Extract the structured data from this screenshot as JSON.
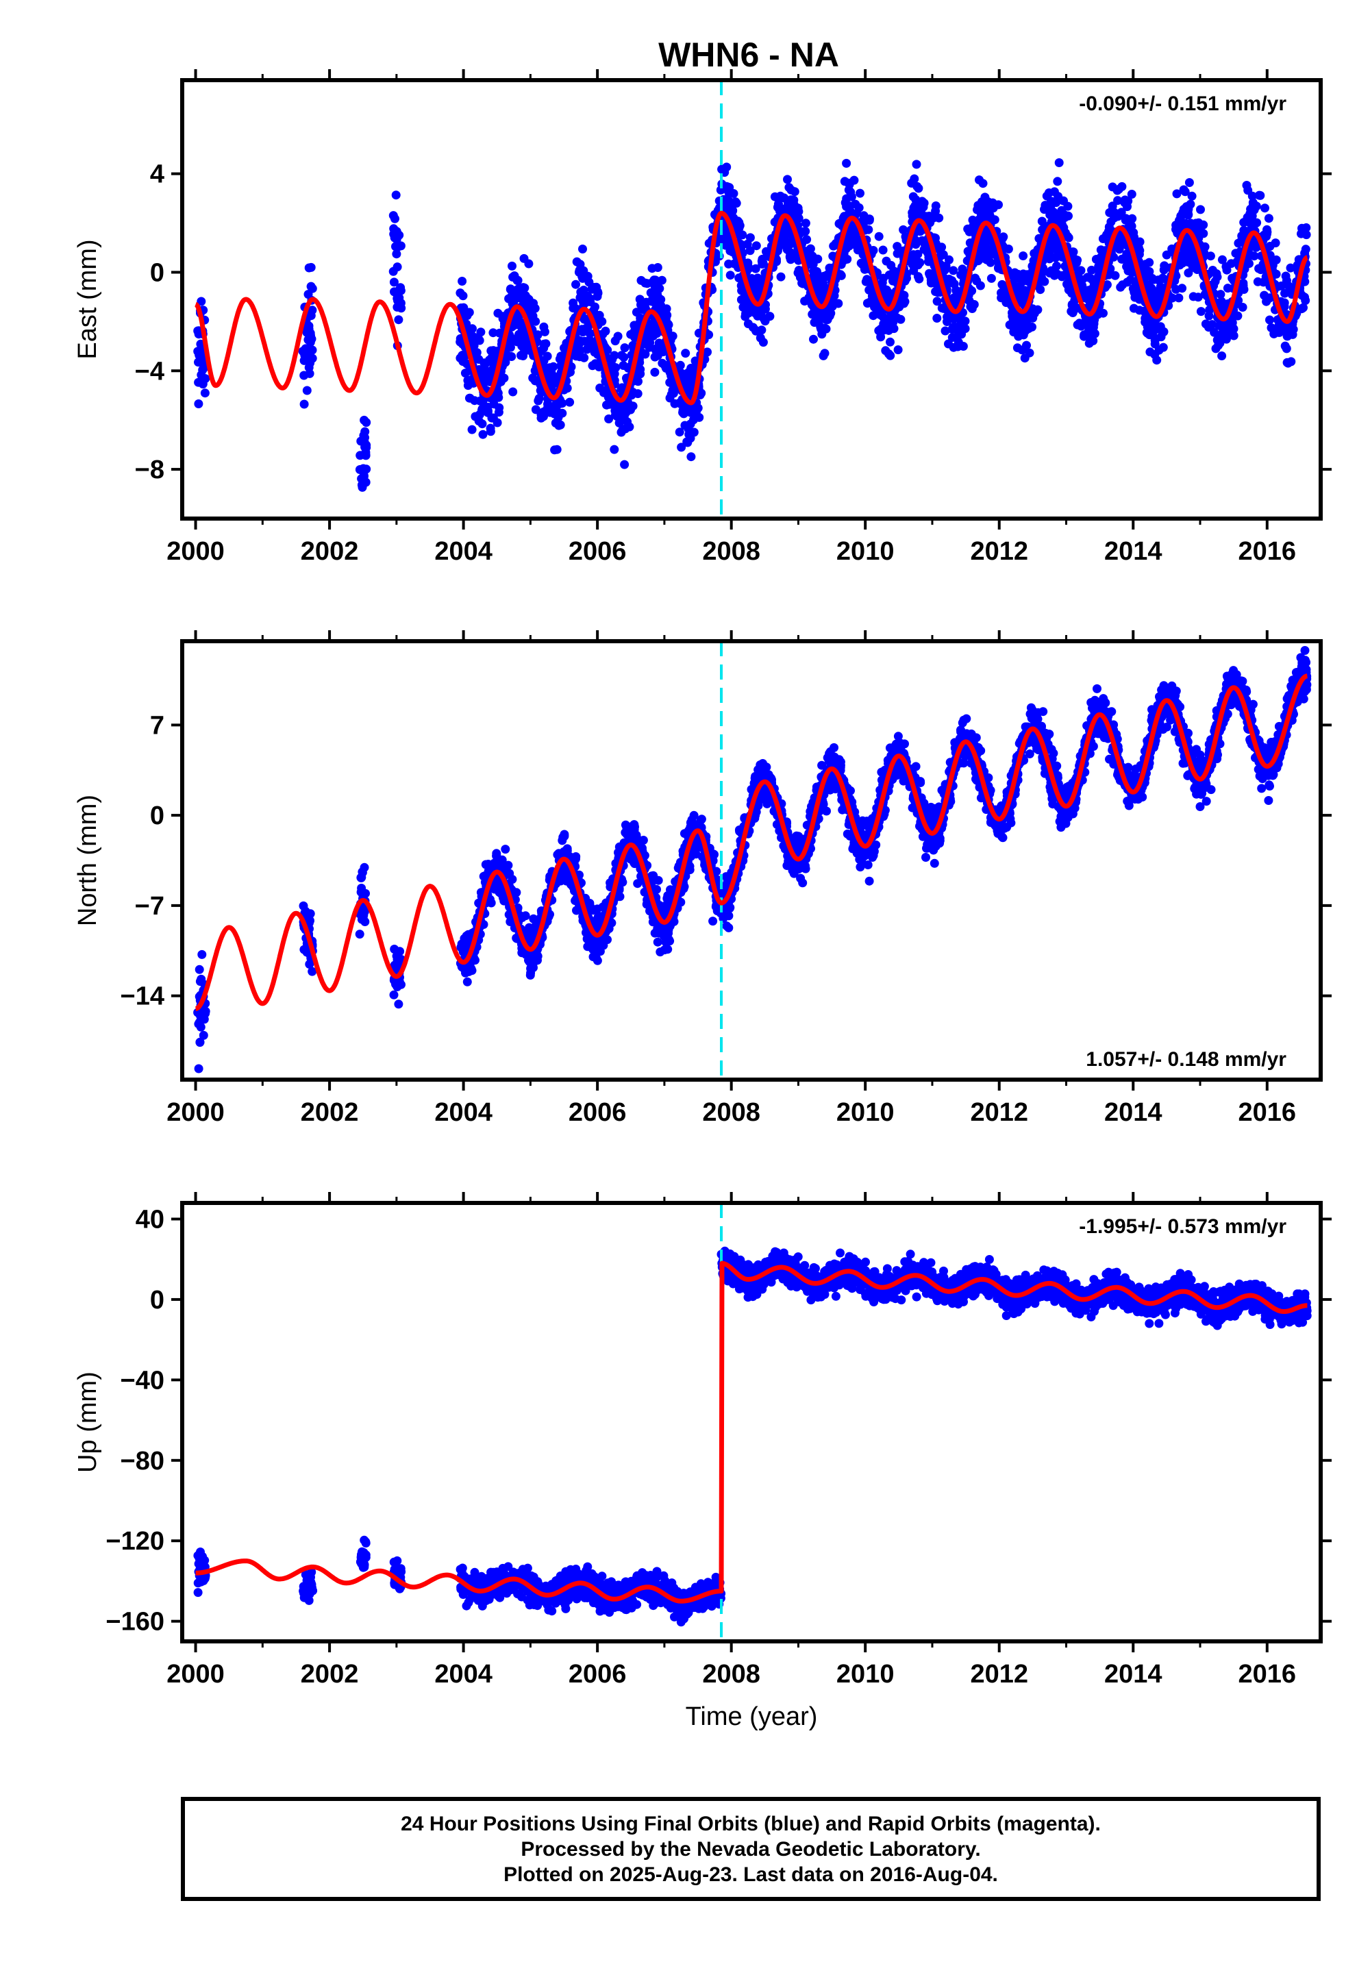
{
  "title": "WHN6 - NA",
  "colors": {
    "data": "#0000ff",
    "model": "#ff0000",
    "offset": "#00e5ee",
    "frame": "#000000"
  },
  "chart_data": [
    {
      "type": "scatter",
      "component": "East",
      "ylabel": "East (mm)",
      "xlim": [
        1999.8,
        2016.8
      ],
      "ylim": [
        -10,
        7.8
      ],
      "xticks": [
        2000,
        2002,
        2004,
        2006,
        2008,
        2010,
        2012,
        2014,
        2016
      ],
      "yticks": [
        4,
        0,
        -4,
        -8
      ],
      "rate_label": "-0.090+/- 0.151 mm/yr",
      "rate_position": "top-right",
      "offset_epoch": 2007.85,
      "model": {
        "description_points": [
          {
            "x": 2000.0,
            "y": -1.3
          },
          {
            "x": 2000.3,
            "y": -4.6
          },
          {
            "x": 2000.75,
            "y": -1.1
          },
          {
            "x": 2001.3,
            "y": -4.7
          },
          {
            "x": 2001.75,
            "y": -1.1
          },
          {
            "x": 2002.3,
            "y": -4.8
          },
          {
            "x": 2002.75,
            "y": -1.2
          },
          {
            "x": 2003.3,
            "y": -4.9
          },
          {
            "x": 2003.8,
            "y": -1.3
          },
          {
            "x": 2004.35,
            "y": -5.0
          },
          {
            "x": 2004.8,
            "y": -1.4
          },
          {
            "x": 2005.35,
            "y": -5.1
          },
          {
            "x": 2005.8,
            "y": -1.5
          },
          {
            "x": 2006.35,
            "y": -5.2
          },
          {
            "x": 2006.8,
            "y": -1.6
          },
          {
            "x": 2007.4,
            "y": -5.3
          },
          {
            "x": 2007.85,
            "y": 2.4
          },
          {
            "x": 2008.4,
            "y": -1.3
          },
          {
            "x": 2008.8,
            "y": 2.3
          },
          {
            "x": 2009.35,
            "y": -1.4
          },
          {
            "x": 2009.8,
            "y": 2.2
          },
          {
            "x": 2010.35,
            "y": -1.5
          },
          {
            "x": 2010.8,
            "y": 2.1
          },
          {
            "x": 2011.35,
            "y": -1.6
          },
          {
            "x": 2011.8,
            "y": 2.0
          },
          {
            "x": 2012.35,
            "y": -1.6
          },
          {
            "x": 2012.8,
            "y": 1.9
          },
          {
            "x": 2013.35,
            "y": -1.7
          },
          {
            "x": 2013.8,
            "y": 1.8
          },
          {
            "x": 2014.35,
            "y": -1.8
          },
          {
            "x": 2014.8,
            "y": 1.7
          },
          {
            "x": 2015.35,
            "y": -1.9
          },
          {
            "x": 2015.8,
            "y": 1.6
          },
          {
            "x": 2016.3,
            "y": -2.0
          },
          {
            "x": 2016.6,
            "y": 0.6
          }
        ]
      },
      "segments": [
        {
          "x": [
            2000.03,
            2000.15
          ],
          "center_base": -1.3,
          "spread": 1.8
        },
        {
          "x": [
            2001.6,
            2001.75
          ],
          "center_base": -1.2,
          "spread": 1.8
        },
        {
          "x": [
            2002.45,
            2002.55
          ],
          "center_base": -4.6,
          "spread": 1.2
        },
        {
          "x": [
            2002.95,
            2003.07
          ],
          "center_base": 3.0,
          "spread": 1.6
        },
        {
          "x": [
            2003.95,
            2007.85
          ],
          "center_base": 0,
          "spread": 1.3
        },
        {
          "x": [
            2007.85,
            2016.6
          ],
          "center_base": 0,
          "spread": 1.2
        }
      ]
    },
    {
      "type": "scatter",
      "component": "North",
      "ylabel": "North (mm)",
      "xlim": [
        1999.8,
        2016.8
      ],
      "ylim": [
        -20.5,
        13.5
      ],
      "xticks": [
        2000,
        2002,
        2004,
        2006,
        2008,
        2010,
        2012,
        2014,
        2016
      ],
      "yticks": [
        7,
        0,
        -7,
        -14
      ],
      "rate_label": "1.057+/- 0.148 mm/yr",
      "rate_position": "bottom-right",
      "offset_epoch": 2007.85,
      "model": {
        "description_points": [
          {
            "x": 2000.0,
            "y": -15.0
          },
          {
            "x": 2000.5,
            "y": -8.7
          },
          {
            "x": 2001.0,
            "y": -14.6
          },
          {
            "x": 2001.5,
            "y": -7.6
          },
          {
            "x": 2002.0,
            "y": -13.6
          },
          {
            "x": 2002.5,
            "y": -6.6
          },
          {
            "x": 2003.0,
            "y": -12.5
          },
          {
            "x": 2003.5,
            "y": -5.5
          },
          {
            "x": 2004.0,
            "y": -11.4
          },
          {
            "x": 2004.5,
            "y": -4.4
          },
          {
            "x": 2005.0,
            "y": -10.4
          },
          {
            "x": 2005.5,
            "y": -3.4
          },
          {
            "x": 2006.0,
            "y": -9.3
          },
          {
            "x": 2006.5,
            "y": -2.3
          },
          {
            "x": 2007.0,
            "y": -8.3
          },
          {
            "x": 2007.5,
            "y": -1.2
          },
          {
            "x": 2007.85,
            "y": -6.8
          },
          {
            "x": 2008.5,
            "y": 2.6
          },
          {
            "x": 2009.0,
            "y": -3.4
          },
          {
            "x": 2009.5,
            "y": 3.6
          },
          {
            "x": 2010.0,
            "y": -2.4
          },
          {
            "x": 2010.5,
            "y": 4.6
          },
          {
            "x": 2011.0,
            "y": -1.4
          },
          {
            "x": 2011.5,
            "y": 5.7
          },
          {
            "x": 2012.0,
            "y": -0.3
          },
          {
            "x": 2012.5,
            "y": 6.7
          },
          {
            "x": 2013.0,
            "y": 0.7
          },
          {
            "x": 2013.5,
            "y": 7.8
          },
          {
            "x": 2014.0,
            "y": 1.8
          },
          {
            "x": 2014.5,
            "y": 8.9
          },
          {
            "x": 2015.0,
            "y": 2.8
          },
          {
            "x": 2015.5,
            "y": 9.9
          },
          {
            "x": 2016.0,
            "y": 3.8
          },
          {
            "x": 2016.6,
            "y": 10.8
          }
        ]
      },
      "segments": [
        {
          "x": [
            2000.03,
            2000.15
          ],
          "center_base": 0,
          "spread": 2.5
        },
        {
          "x": [
            2001.6,
            2001.75
          ],
          "center_base": 0,
          "spread": 1.4
        },
        {
          "x": [
            2002.45,
            2002.55
          ],
          "center_base": 0,
          "spread": 2.0
        },
        {
          "x": [
            2002.95,
            2003.07
          ],
          "center_base": 0,
          "spread": 1.4
        },
        {
          "x": [
            2003.95,
            2007.85
          ],
          "center_base": 0,
          "spread": 1.3
        },
        {
          "x": [
            2007.85,
            2016.6
          ],
          "center_base": 0,
          "spread": 1.2
        }
      ]
    },
    {
      "type": "scatter",
      "component": "Up",
      "ylabel": "Up (mm)",
      "xlim": [
        1999.8,
        2016.8
      ],
      "ylim": [
        -170,
        48
      ],
      "xticks": [
        2000,
        2002,
        2004,
        2006,
        2008,
        2010,
        2012,
        2014,
        2016
      ],
      "yticks": [
        40,
        0,
        -40,
        -80,
        -120,
        -160
      ],
      "xlabel": "Time (year)",
      "rate_label": "-1.995+/- 0.573 mm/yr",
      "rate_position": "top-right",
      "offset_epoch": 2007.85,
      "model": {
        "description_points": [
          {
            "x": 2000.0,
            "y": -136
          },
          {
            "x": 2000.75,
            "y": -130
          },
          {
            "x": 2001.25,
            "y": -139
          },
          {
            "x": 2001.75,
            "y": -133
          },
          {
            "x": 2002.25,
            "y": -141
          },
          {
            "x": 2002.75,
            "y": -135
          },
          {
            "x": 2003.25,
            "y": -143
          },
          {
            "x": 2003.75,
            "y": -137
          },
          {
            "x": 2004.25,
            "y": -145
          },
          {
            "x": 2004.75,
            "y": -139
          },
          {
            "x": 2005.25,
            "y": -147
          },
          {
            "x": 2005.75,
            "y": -141
          },
          {
            "x": 2006.25,
            "y": -149
          },
          {
            "x": 2006.75,
            "y": -143
          },
          {
            "x": 2007.25,
            "y": -150
          },
          {
            "x": 2007.85,
            "y": -145
          },
          {
            "x": 2007.85,
            "y": 18
          },
          {
            "x": 2008.25,
            "y": 10
          },
          {
            "x": 2008.75,
            "y": 16
          },
          {
            "x": 2009.25,
            "y": 8
          },
          {
            "x": 2009.75,
            "y": 14
          },
          {
            "x": 2010.25,
            "y": 6
          },
          {
            "x": 2010.75,
            "y": 12
          },
          {
            "x": 2011.25,
            "y": 4
          },
          {
            "x": 2011.75,
            "y": 10
          },
          {
            "x": 2012.25,
            "y": 2
          },
          {
            "x": 2012.75,
            "y": 8
          },
          {
            "x": 2013.25,
            "y": 0
          },
          {
            "x": 2013.75,
            "y": 6
          },
          {
            "x": 2014.25,
            "y": -2
          },
          {
            "x": 2014.75,
            "y": 4
          },
          {
            "x": 2015.25,
            "y": -4
          },
          {
            "x": 2015.75,
            "y": 2
          },
          {
            "x": 2016.25,
            "y": -6
          },
          {
            "x": 2016.6,
            "y": -3
          }
        ]
      },
      "segments": [
        {
          "x": [
            2000.03,
            2000.15
          ],
          "center_base": 0,
          "spread": 6
        },
        {
          "x": [
            2001.6,
            2001.75
          ],
          "center_base": -10,
          "spread": 5
        },
        {
          "x": [
            2002.45,
            2002.55
          ],
          "center_base": 10,
          "spread": 5
        },
        {
          "x": [
            2002.95,
            2003.07
          ],
          "center_base": 2,
          "spread": 5
        },
        {
          "x": [
            2003.95,
            2007.85
          ],
          "center_base": 0,
          "spread": 5
        },
        {
          "x": [
            2007.85,
            2016.6
          ],
          "center_base": 0,
          "spread": 5
        }
      ]
    }
  ],
  "footer": {
    "line1": "24 Hour Positions Using Final Orbits (blue) and Rapid Orbits (magenta).",
    "line2": "Processed by the Nevada Geodetic Laboratory.",
    "line3": "Plotted on 2025-Aug-23. Last data on 2016-Aug-04."
  }
}
